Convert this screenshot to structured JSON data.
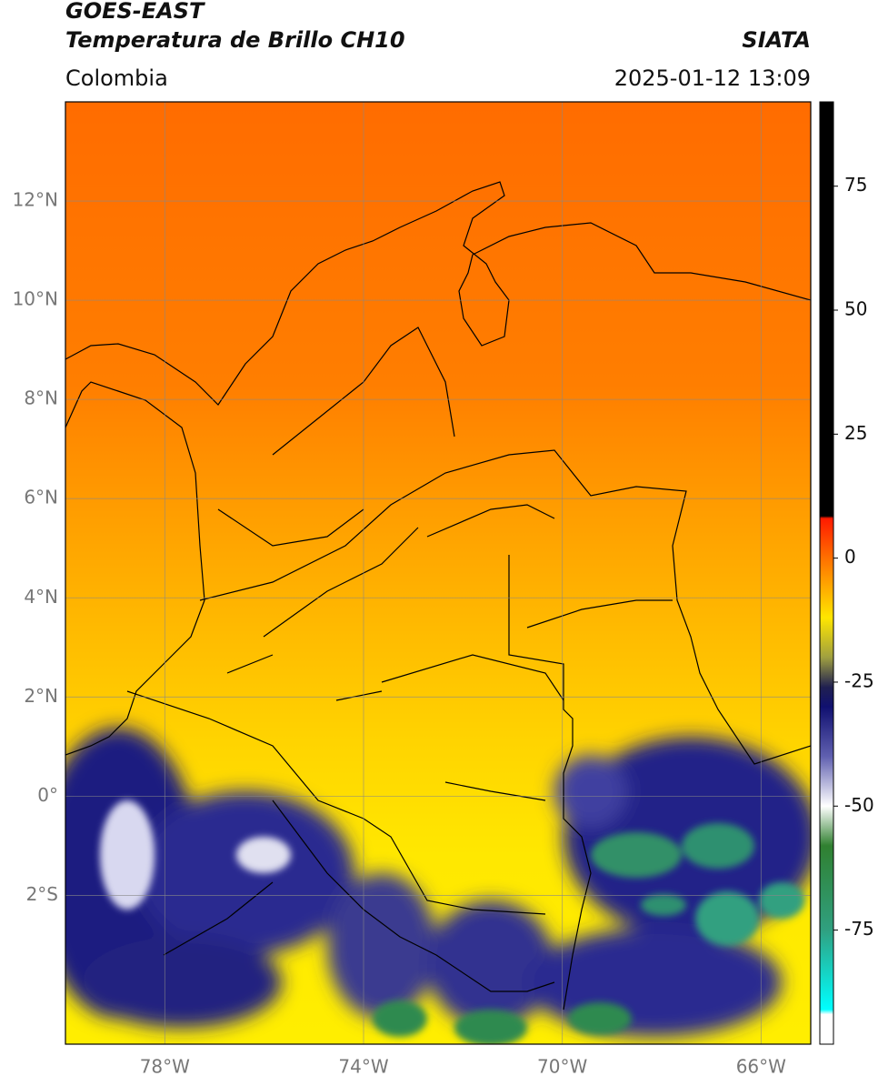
{
  "header": {
    "satellite": "GOES-EAST",
    "product": "Temperatura de Brillo CH10",
    "source": "SIATA",
    "region": "Colombia",
    "datetime": "2025-01-12 13:09"
  },
  "map": {
    "lonlim": [
      -80,
      -65
    ],
    "latlim": [
      -5,
      14
    ],
    "lat_ticks": [
      {
        "value": 12,
        "label": "12°N"
      },
      {
        "value": 10,
        "label": "10°N"
      },
      {
        "value": 8,
        "label": "8°N"
      },
      {
        "value": 6,
        "label": "6°N"
      },
      {
        "value": 4,
        "label": "4°N"
      },
      {
        "value": 2,
        "label": "2°N"
      },
      {
        "value": 0,
        "label": "0°"
      },
      {
        "value": -2,
        "label": "2°S"
      }
    ],
    "lon_ticks": [
      {
        "value": -78,
        "label": "78°W"
      },
      {
        "value": -74,
        "label": "74°W"
      },
      {
        "value": -70,
        "label": "70°W"
      },
      {
        "value": -66,
        "label": "66°W"
      }
    ]
  },
  "colorbar": {
    "lim": [
      -98,
      92
    ],
    "ticks": [
      75,
      50,
      25,
      0,
      -25,
      -50,
      -75
    ],
    "colormap": [
      {
        "value": 92,
        "color": "#000000"
      },
      {
        "value": 8.5,
        "color": "#000000"
      },
      {
        "value": 8,
        "color": "#ff1a00"
      },
      {
        "value": 0,
        "color": "#ff7000"
      },
      {
        "value": -12,
        "color": "#ffe600"
      },
      {
        "value": -20,
        "color": "#a0a040"
      },
      {
        "value": -26,
        "color": "#202050"
      },
      {
        "value": -30,
        "color": "#101070"
      },
      {
        "value": -40,
        "color": "#6060b0"
      },
      {
        "value": -50,
        "color": "#ffffff"
      },
      {
        "value": -58,
        "color": "#308030"
      },
      {
        "value": -75,
        "color": "#30a080"
      },
      {
        "value": -91,
        "color": "#00ffff"
      },
      {
        "value": -92,
        "color": "#ffffff"
      },
      {
        "value": -98,
        "color": "#ffffff"
      }
    ]
  }
}
